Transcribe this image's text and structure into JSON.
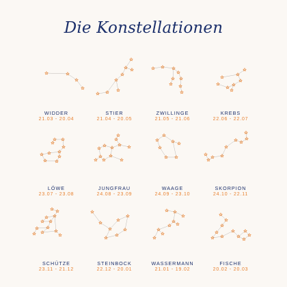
{
  "title": "Die Konstellationen",
  "colors": {
    "title": "#1b2f6b",
    "name": "#1b2f6b",
    "dates": "#e8812f",
    "stars": "#e8812f",
    "lines": "#bdbab6",
    "background": "#fbf8f4"
  },
  "signs": [
    {
      "name": "WIDDER",
      "dates": "21.03 - 20.04"
    },
    {
      "name": "STIER",
      "dates": "21.04 - 20.05"
    },
    {
      "name": "ZWILLINGE",
      "dates": "21.05 - 21.06"
    },
    {
      "name": "KREBS",
      "dates": "22.06 - 22.07"
    },
    {
      "name": "LÖWE",
      "dates": "23.07 - 23.08"
    },
    {
      "name": "JUNGFRAU",
      "dates": "24.08 - 23.09"
    },
    {
      "name": "WAAGE",
      "dates": "24.09 - 23.10"
    },
    {
      "name": "SKORPION",
      "dates": "24.10 - 22.11"
    },
    {
      "name": "SCHÜTZE",
      "dates": "23.11 - 21.12"
    },
    {
      "name": "STEINBOCK",
      "dates": "22.12 - 20.01"
    },
    {
      "name": "WASSERMANN",
      "dates": "21.01 - 19.02"
    },
    {
      "name": "FISCHE",
      "dates": "20.02 - 20.03"
    }
  ]
}
